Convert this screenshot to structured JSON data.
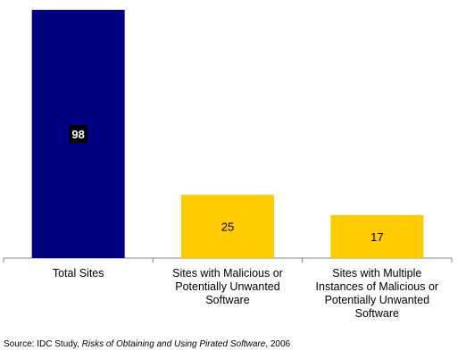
{
  "chart_data": {
    "type": "bar",
    "categories": [
      "Total Sites",
      "Sites with Malicious or Potentially Unwanted Software",
      "Sites with Multiple Instances of Malicious or Potentially Unwanted Software"
    ],
    "category_lines": [
      [
        "Total Sites"
      ],
      [
        "Sites with Malicious or",
        "Potentially Unwanted",
        "Software"
      ],
      [
        "Sites with Multiple",
        "Instances of Malicious or",
        "Potentially Unwanted",
        "Software"
      ]
    ],
    "values": [
      98,
      25,
      17
    ],
    "data_labels": [
      "98",
      "25",
      "17"
    ],
    "colors": [
      "#000080",
      "#FFCC00",
      "#FFCC00"
    ],
    "ylim": [
      0,
      100
    ],
    "grid": false,
    "legend": "none"
  },
  "source": {
    "prefix": "Source: IDC Study, ",
    "title": "Risks of Obtaining and Using Pirated Software",
    "suffix": ", 2006"
  }
}
